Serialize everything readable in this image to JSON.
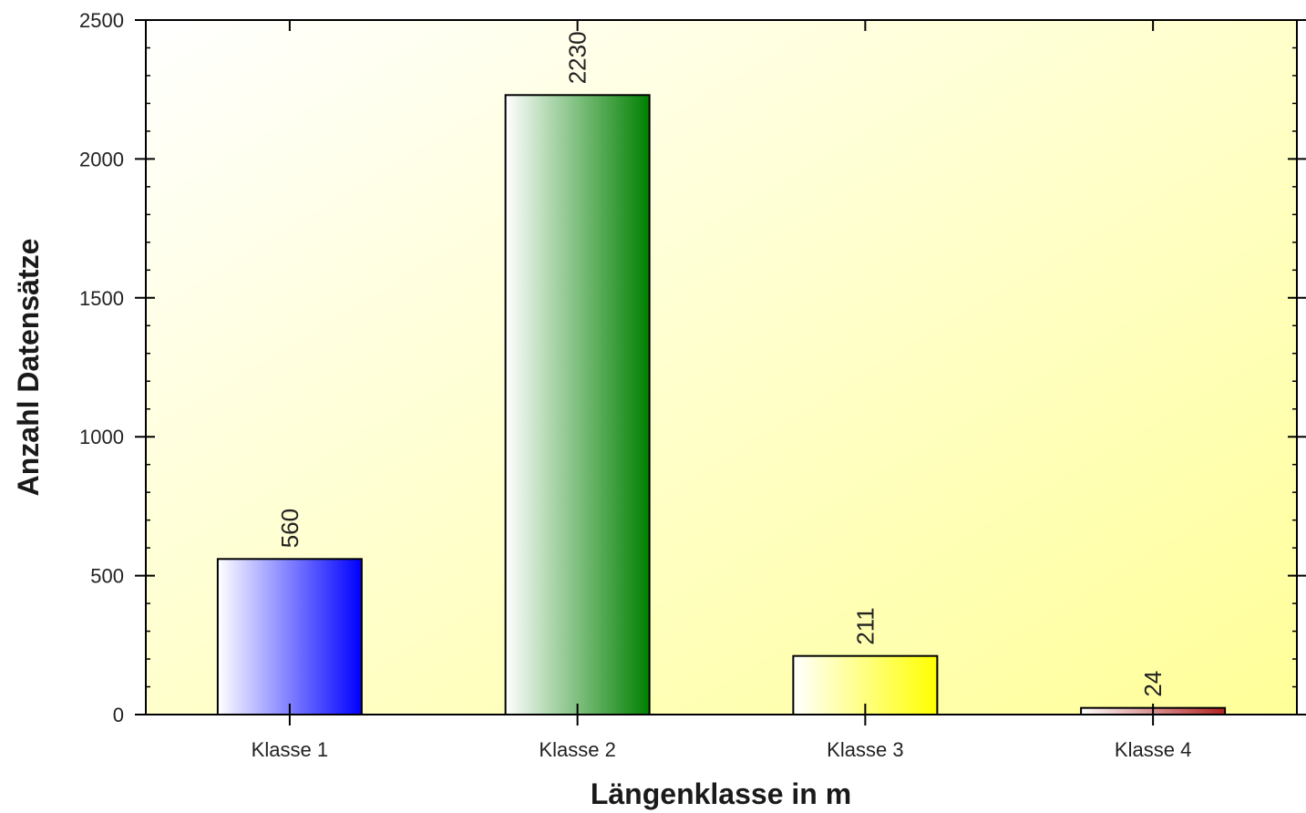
{
  "chart_data": {
    "type": "bar",
    "title": "",
    "xlabel": "Längenklasse in m",
    "ylabel": "Anzahl Datensätze",
    "categories": [
      "Klasse 1",
      "Klasse 2",
      "Klasse 3",
      "Klasse 4"
    ],
    "values": [
      560,
      2230,
      211,
      24
    ],
    "data_labels": [
      "560",
      "2230",
      "211",
      "24"
    ],
    "bar_colors": [
      "#0000ff",
      "#008000",
      "#ffff00",
      "#b22222"
    ],
    "ylim": [
      0,
      2500
    ],
    "y_ticks": [
      0,
      500,
      1000,
      1500,
      2000,
      2500
    ],
    "y_tick_labels": [
      "0",
      "500",
      "1000",
      "1500",
      "2000",
      "2500"
    ],
    "y_minor_step": 100,
    "grid": false,
    "legend": "none",
    "plot_background": [
      "#ffffff",
      "#ffff99"
    ]
  }
}
